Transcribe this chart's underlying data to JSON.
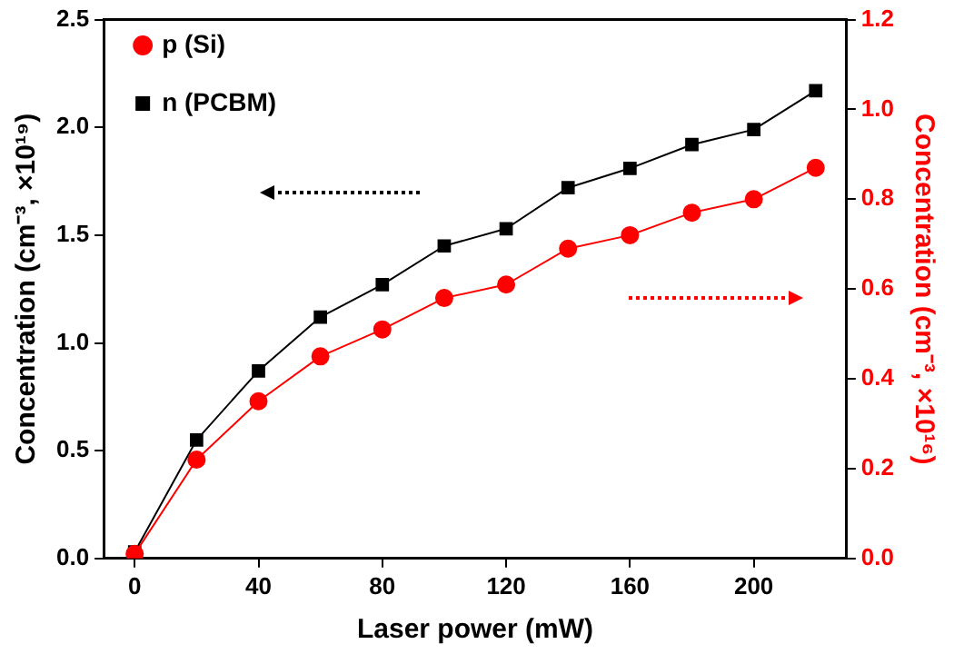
{
  "chart_data": {
    "type": "line",
    "xlabel": "Laser power (mW)",
    "ylabel": "Concentration (cm⁻³, ×10¹⁹)",
    "y2label": "Concentration (cm⁻³, ×10¹⁶)",
    "x": [
      0,
      20,
      40,
      60,
      80,
      100,
      120,
      140,
      160,
      180,
      200,
      220
    ],
    "series": [
      {
        "name": "n (PCBM)",
        "color": "#000000",
        "marker": "square",
        "values": [
          0.03,
          0.55,
          0.87,
          1.12,
          1.27,
          1.45,
          1.53,
          1.72,
          1.81,
          1.92,
          1.99,
          2.17
        ]
      },
      {
        "name": "p (Si)",
        "color": "#ff0000",
        "marker": "circle",
        "axis": "y2",
        "values": [
          0.01,
          0.22,
          0.35,
          0.45,
          0.51,
          0.58,
          0.61,
          0.69,
          0.72,
          0.77,
          0.8,
          0.87
        ]
      }
    ],
    "xlim": [
      -10,
      230
    ],
    "xticks": [
      0,
      40,
      80,
      120,
      160,
      200
    ],
    "ylim": [
      0,
      2.5
    ],
    "yticks": [
      {
        "value": 0,
        "label": "0.0"
      },
      0.5,
      {
        "value": 1,
        "label": "1.0"
      },
      1.5,
      {
        "value": 2,
        "label": "2.0"
      },
      2.5
    ],
    "y2lim": [
      0,
      1.2
    ],
    "y2ticks": [
      {
        "value": 0,
        "label": "0.0"
      },
      0.2,
      0.4,
      0.6,
      0.8,
      {
        "value": 1,
        "label": "1.0"
      },
      1.2
    ],
    "grid": false,
    "legend": "top left",
    "line_style": "solid"
  }
}
